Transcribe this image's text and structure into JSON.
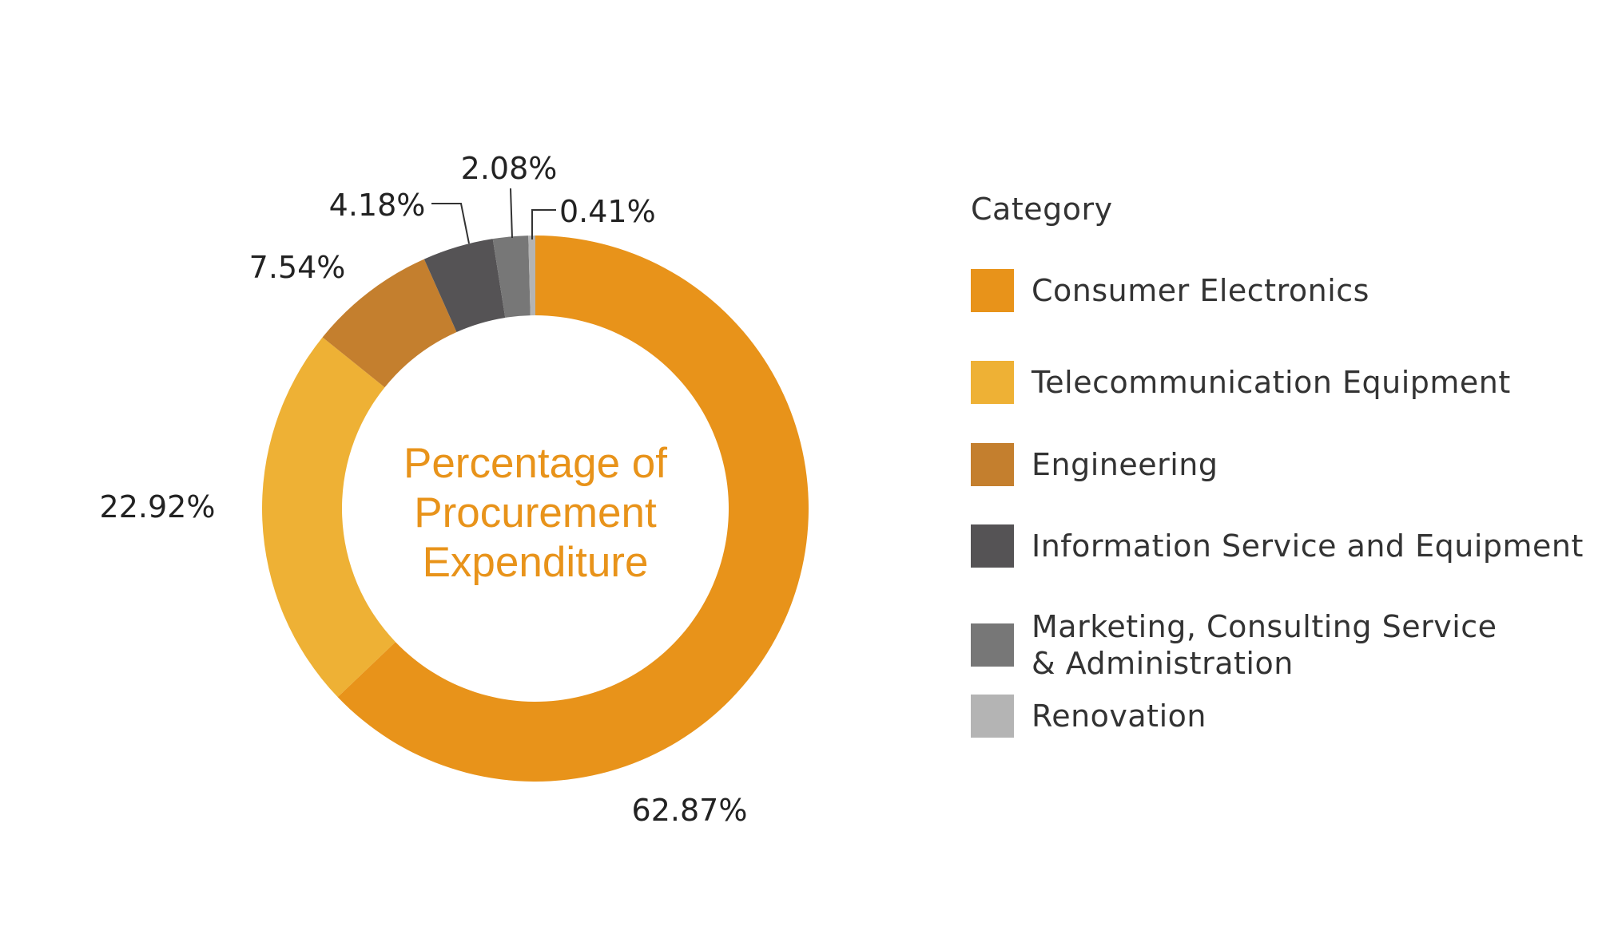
{
  "chart_data": {
    "type": "pie",
    "variant": "donut",
    "title": "Percentage of Procurement Expenditure",
    "title_lines": [
      "Percentage of",
      "Procurement",
      "Expenditure"
    ],
    "legend_title": "Category",
    "legend_position": "right",
    "slices": [
      {
        "name": "Consumer Electronics",
        "name_lines": [
          "Consumer Electronics"
        ],
        "value": 62.87,
        "label": "62.87%",
        "color": "#e8931a"
      },
      {
        "name": "Telecommunication Equipment",
        "name_lines": [
          "Telecommunication Equipment"
        ],
        "value": 22.92,
        "label": "22.92%",
        "color": "#eeb135"
      },
      {
        "name": "Engineering",
        "name_lines": [
          "Engineering"
        ],
        "value": 7.54,
        "label": "7.54%",
        "color": "#c47f2e"
      },
      {
        "name": "Information Service and Equipment",
        "name_lines": [
          "Information Service and Equipment"
        ],
        "value": 4.18,
        "label": "4.18%",
        "color": "#555355"
      },
      {
        "name": "Marketing, Consulting Service & Administration",
        "name_lines": [
          "Marketing, Consulting Service",
          "& Administration"
        ],
        "value": 2.08,
        "label": "2.08%",
        "color": "#777777"
      },
      {
        "name": "Renovation",
        "name_lines": [
          "Renovation"
        ],
        "value": 0.41,
        "label": "0.41%",
        "color": "#b4b4b4"
      }
    ]
  }
}
